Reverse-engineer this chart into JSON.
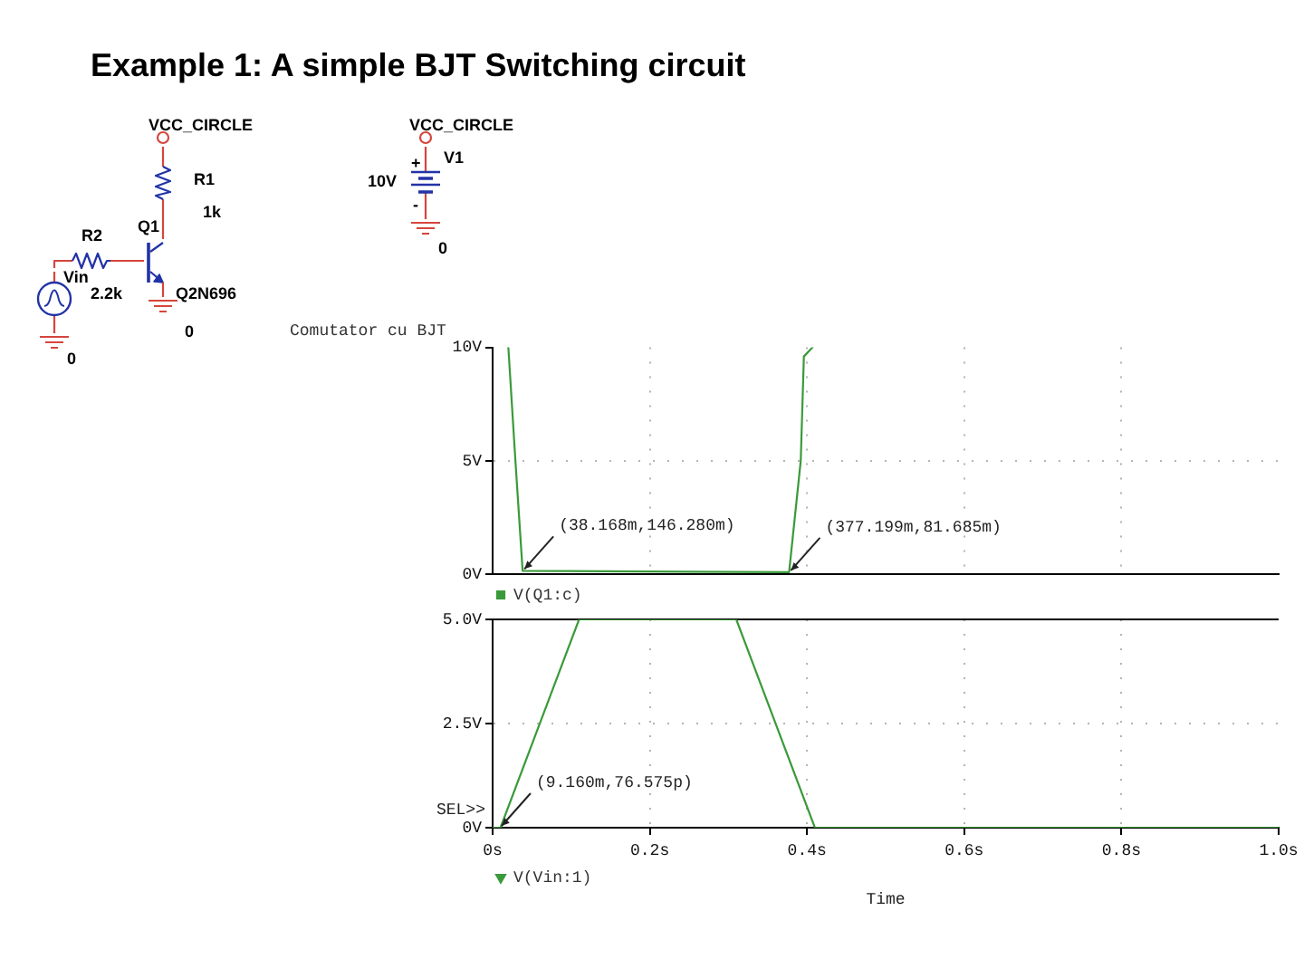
{
  "chart_data": [
    {
      "type": "other",
      "title": "Example 1: A simple BJT Switching circuit",
      "annotations": [
        "VCC_CIRCLE",
        "R1",
        "1k",
        "Q1",
        "R2",
        "2.2k",
        "Vin",
        "Q2N696",
        "0",
        "0",
        "VCC_CIRCLE",
        "V1",
        "10V",
        "+",
        "-",
        "0"
      ]
    },
    {
      "type": "line",
      "title": "Comutator cu BJT",
      "x": [
        0.02,
        0.029,
        0.038168,
        0.377199,
        0.392,
        0.396,
        0.407
      ],
      "series": [
        {
          "name": "V(Q1:c)",
          "color": "#3a9a3a",
          "values": [
            10,
            5,
            0.14628,
            0.081685,
            5,
            9.6,
            10
          ]
        }
      ],
      "xlim": [
        0,
        1
      ],
      "xticks": [
        0,
        0.2,
        0.4,
        0.6,
        0.8,
        1
      ],
      "ylim": [
        0,
        10
      ],
      "yticks": [
        {
          "value": 0,
          "label": "0V"
        },
        {
          "value": 5,
          "label": "5V"
        },
        {
          "value": 10,
          "label": "10V"
        }
      ],
      "tick_labels": "y",
      "grid": true,
      "legend": "bottom left",
      "annotations": [
        {
          "text": "(38.168m,146.280m)",
          "x": 0.038168,
          "y": 0.14628
        },
        {
          "text": "(377.199m,81.685m)",
          "x": 0.377199,
          "y": 0.081685
        }
      ]
    },
    {
      "type": "line",
      "xlabel": "Time",
      "x": [
        0,
        0.01,
        0.11,
        0.31,
        0.41,
        1
      ],
      "series": [
        {
          "name": "V(Vin:1)",
          "color": "#3a9a3a",
          "values": [
            0,
            0,
            5,
            5,
            0,
            0
          ]
        }
      ],
      "xlim": [
        0,
        1
      ],
      "xticks": [
        {
          "value": 0,
          "label": "0s"
        },
        {
          "value": 0.2,
          "label": "0.2s"
        },
        {
          "value": 0.4,
          "label": "0.4s"
        },
        {
          "value": 0.6,
          "label": "0.6s"
        },
        {
          "value": 0.8,
          "label": "0.8s"
        },
        {
          "value": 1,
          "label": "1.0s"
        }
      ],
      "ylim": [
        0,
        5
      ],
      "yticks": [
        {
          "value": 0,
          "label": "0V"
        },
        {
          "value": 2.5,
          "label": "2.5V"
        },
        {
          "value": 5,
          "label": "5.0V"
        }
      ],
      "grid": true,
      "legend": "bottom left",
      "annotations": [
        {
          "text": "(9.160m,76.575p)",
          "x": 0.00916,
          "y": 7.6575e-11
        },
        "SEL>>"
      ]
    }
  ]
}
